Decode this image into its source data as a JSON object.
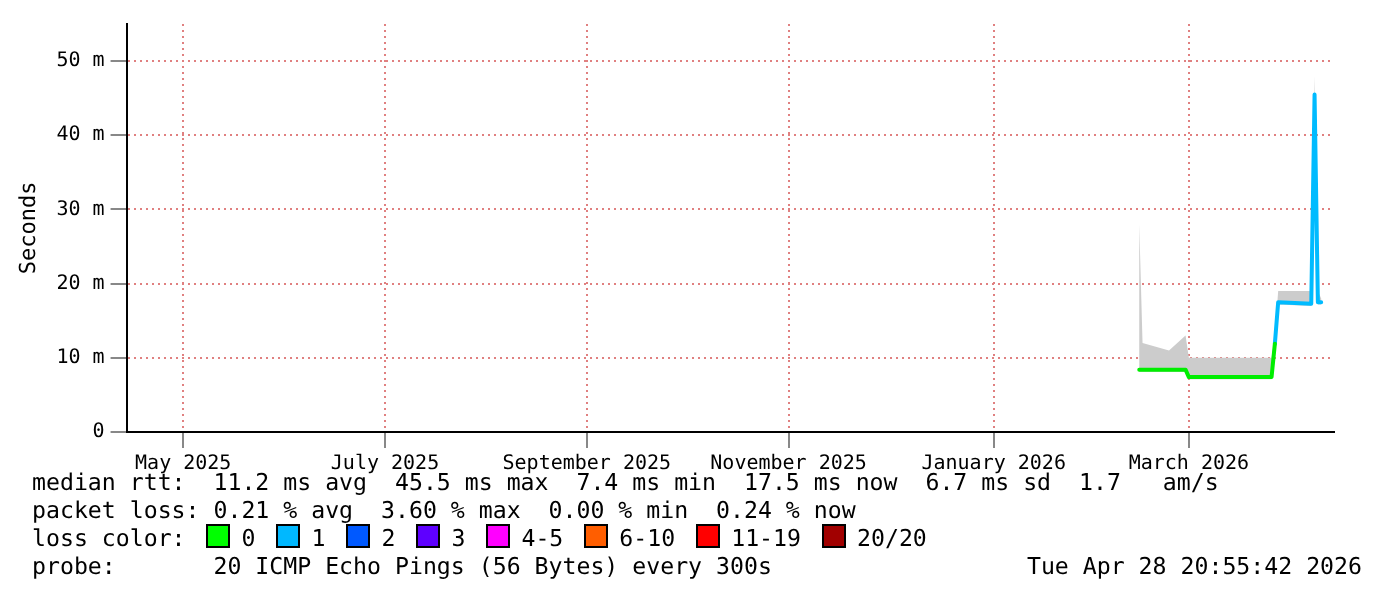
{
  "chart_data": {
    "type": "line",
    "ylabel": "Seconds",
    "grid": true,
    "legend": false,
    "xlim": [
      "2025-04-28T21:00",
      "2026-04-28T21:00"
    ],
    "xticks": [
      {
        "value": "2025-05-16",
        "label": "May 2025"
      },
      {
        "value": "2025-07-16",
        "label": "July 2025"
      },
      {
        "value": "2025-09-15",
        "label": "September 2025"
      },
      {
        "value": "2025-11-15",
        "label": "November 2025"
      },
      {
        "value": "2026-01-16",
        "label": "January 2026"
      },
      {
        "value": "2026-03-16",
        "label": "March 2026"
      }
    ],
    "ylim": [
      0,
      55
    ],
    "yticks": [
      0,
      {
        "value": 10,
        "label": "10 m"
      },
      {
        "value": 20,
        "label": "20 m"
      },
      {
        "value": 30,
        "label": "30 m"
      },
      {
        "value": 40,
        "label": "40 m"
      },
      {
        "value": 50,
        "label": "50 m"
      }
    ],
    "series": [
      {
        "color": "#00ee00",
        "x": [
          "2026-03-01",
          "2026-03-02",
          "2026-03-10",
          "2026-03-15",
          "2026-03-16",
          "2026-04-01",
          "2026-04-10",
          "2026-04-11"
        ],
        "values": [
          8.4,
          8.4,
          8.4,
          8.4,
          7.4,
          7.4,
          7.4,
          11.9
        ],
        "lower": [
          8.1,
          8.1,
          8.1,
          8.1,
          7.1,
          7.1,
          7.1,
          11.6
        ],
        "upper": [
          28,
          12,
          11,
          13,
          10,
          10,
          10,
          13
        ]
      },
      {
        "color": "#00bbff",
        "x": [
          "2026-04-11",
          "2026-04-12",
          "2026-04-22",
          "2026-04-23",
          "2026-04-24",
          "2026-04-25"
        ],
        "values": [
          11.9,
          17.5,
          17.3,
          45.5,
          17.5,
          17.5
        ],
        "lower": [
          11.6,
          17.2,
          17,
          45,
          17.2,
          17.2
        ],
        "upper": [
          13,
          19,
          19,
          48,
          19,
          18
        ]
      }
    ],
    "annotations": [
      "median rtt:  11.2 ms avg  45.5 ms max  7.4 ms min  17.5 ms now  6.7 ms sd  1.7   am/s",
      "packet loss: 0.21 % avg  3.60 % max  0.00 % min  0.24 % now",
      "loss color:",
      "0",
      "1",
      "2",
      "3",
      "4-5",
      "6-10",
      "11-19",
      "20/20",
      "probe:       20 ICMP Echo Pings (56 Bytes) every 300s",
      "Tue Apr 28 20:55:42 2026"
    ]
  }
}
